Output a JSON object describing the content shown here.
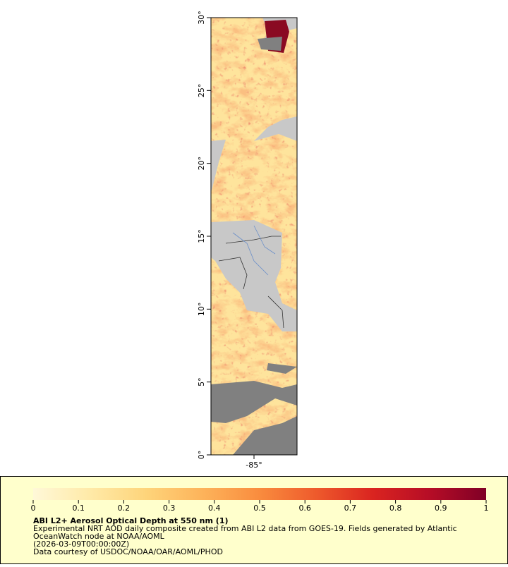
{
  "map": {
    "xlim": [
      -88,
      -82
    ],
    "ylim": [
      0,
      30
    ],
    "xticks": [
      {
        "value": -85,
        "label": "-85°"
      }
    ],
    "yticks": [
      {
        "value": 0,
        "label": "0°"
      },
      {
        "value": 5,
        "label": "5°"
      },
      {
        "value": 10,
        "label": "10°"
      },
      {
        "value": 15,
        "label": "15°"
      },
      {
        "value": 20,
        "label": "20°"
      },
      {
        "value": 25,
        "label": "25°"
      },
      {
        "value": 30,
        "label": "30°"
      }
    ]
  },
  "legend": {
    "title": "ABI L2+ Aerosol Optical Depth at 550 nm (1)",
    "lines": [
      "Experimental NRT AOD daily composite created from ABI L2 data from GOES-19. Fields generated by Atlantic",
      "OceanWatch node at NOAA/AOML",
      "(2026-03-09T00:00:00Z)",
      "Data courtesy of USDOC/NOAA/OAR/AOML/PHOD"
    ],
    "colorbar": {
      "lim": [
        0,
        1
      ],
      "ticks": [
        0,
        0.1,
        0.2,
        0.3,
        0.4,
        0.5,
        0.6,
        0.7,
        0.8,
        0.9,
        1
      ],
      "colors": [
        "#fff8d8",
        "#ffeaa8",
        "#fed47a",
        "#fdb35a",
        "#f98c3e",
        "#ee5a2c",
        "#da2420",
        "#b60d26",
        "#800026"
      ]
    }
  }
}
